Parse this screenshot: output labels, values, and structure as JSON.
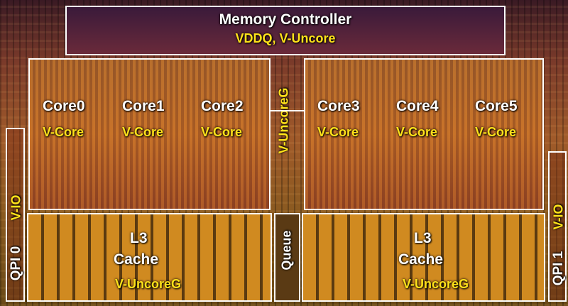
{
  "memory_controller": {
    "title": "Memory Controller",
    "voltage": "VDDQ, V-Uncore"
  },
  "cores": [
    {
      "name": "Core0",
      "voltage": "V-Core"
    },
    {
      "name": "Core1",
      "voltage": "V-Core"
    },
    {
      "name": "Core2",
      "voltage": "V-Core"
    },
    {
      "name": "Core3",
      "voltage": "V-Core"
    },
    {
      "name": "Core4",
      "voltage": "V-Core"
    },
    {
      "name": "Core5",
      "voltage": "V-Core"
    }
  ],
  "center_voltage": "V-UncoreG",
  "queue": "Queue",
  "l3_left": {
    "line1": "L3",
    "line2": "Cache",
    "voltage": "V-UncoreG"
  },
  "l3_right": {
    "line1": "L3",
    "line2": "Cache",
    "voltage": "V-UncoreG"
  },
  "qpi0": {
    "name": "QPI 0",
    "voltage": "V-IO"
  },
  "qpi1": {
    "name": "QPI 1",
    "voltage": "V-IO"
  },
  "colors": {
    "label": "#ffffff",
    "voltage": "#ffe21a",
    "outline": "#ffffff"
  }
}
